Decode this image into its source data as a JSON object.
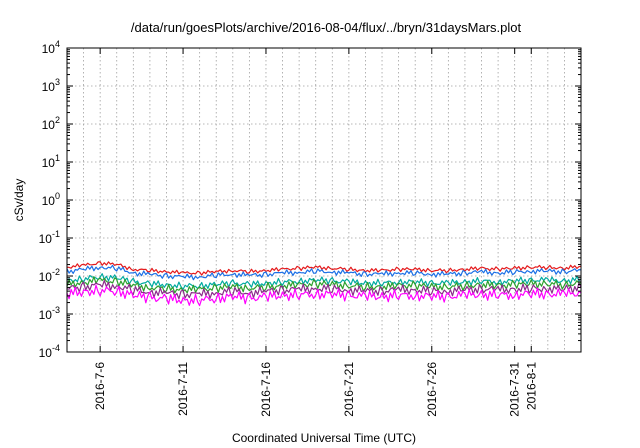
{
  "chart_data": {
    "type": "line",
    "title": "/data/run/goesPlots/archive/2016-08-04/flux/../bryn/31daysMars.plot",
    "xlabel": "Coordinated Universal Time (UTC)",
    "ylabel": "cSv/day",
    "yscale": "log",
    "ylim": [
      0.0001,
      10000
    ],
    "xlim": [
      "2016-07-04",
      "2016-08-04"
    ],
    "grid": true,
    "x_ticks": [
      {
        "label": "2016-7-6",
        "date": "2016-07-06"
      },
      {
        "label": "2016-7-11",
        "date": "2016-07-11"
      },
      {
        "label": "2016-7-16",
        "date": "2016-07-16"
      },
      {
        "label": "2016-7-21",
        "date": "2016-07-21"
      },
      {
        "label": "2016-7-26",
        "date": "2016-07-26"
      },
      {
        "label": "2016-7-31",
        "date": "2016-07-31"
      },
      {
        "label": "2016-8-1",
        "date": "2016-08-01"
      }
    ],
    "y_ticks": [
      {
        "base": "10",
        "exp": "-4",
        "value": 0.0001
      },
      {
        "base": "10",
        "exp": "-3",
        "value": 0.001
      },
      {
        "base": "10",
        "exp": "-2",
        "value": 0.01
      },
      {
        "base": "10",
        "exp": "-1",
        "value": 0.1
      },
      {
        "base": "10",
        "exp": "0",
        "value": 1
      },
      {
        "base": "10",
        "exp": "1",
        "value": 10
      },
      {
        "base": "10",
        "exp": "2",
        "value": 100
      },
      {
        "base": "10",
        "exp": "3",
        "value": 1000
      },
      {
        "base": "10",
        "exp": "4",
        "value": 10000
      }
    ],
    "x": [
      "2016-07-04",
      "2016-07-05",
      "2016-07-06",
      "2016-07-07",
      "2016-07-08",
      "2016-07-09",
      "2016-07-10",
      "2016-07-11",
      "2016-07-12",
      "2016-07-13",
      "2016-07-14",
      "2016-07-15",
      "2016-07-16",
      "2016-07-17",
      "2016-07-18",
      "2016-07-19",
      "2016-07-20",
      "2016-07-21",
      "2016-07-22",
      "2016-07-23",
      "2016-07-24",
      "2016-07-25",
      "2016-07-26",
      "2016-07-27",
      "2016-07-28",
      "2016-07-29",
      "2016-07-30",
      "2016-07-31",
      "2016-08-01",
      "2016-08-02",
      "2016-08-03",
      "2016-08-04"
    ],
    "series": [
      {
        "color": "#e41a1c",
        "values": [
          0.017,
          0.019,
          0.022,
          0.02,
          0.015,
          0.014,
          0.013,
          0.012,
          0.012,
          0.013,
          0.014,
          0.013,
          0.014,
          0.015,
          0.016,
          0.017,
          0.016,
          0.015,
          0.014,
          0.014,
          0.015,
          0.015,
          0.014,
          0.014,
          0.015,
          0.016,
          0.015,
          0.016,
          0.017,
          0.017,
          0.016,
          0.018
        ]
      },
      {
        "color": "#1a6fe6",
        "values": [
          0.013,
          0.015,
          0.017,
          0.016,
          0.012,
          0.011,
          0.01,
          0.0095,
          0.0095,
          0.0105,
          0.0112,
          0.0104,
          0.011,
          0.012,
          0.0125,
          0.0135,
          0.0128,
          0.012,
          0.0112,
          0.0112,
          0.012,
          0.012,
          0.0112,
          0.0112,
          0.012,
          0.0128,
          0.012,
          0.0128,
          0.0135,
          0.0135,
          0.0128,
          0.0145
        ]
      },
      {
        "color": "#00aaa0",
        "values": [
          0.0075,
          0.0085,
          0.0095,
          0.009,
          0.007,
          0.0063,
          0.0058,
          0.0055,
          0.0055,
          0.006,
          0.0065,
          0.006,
          0.0064,
          0.007,
          0.0073,
          0.0078,
          0.0075,
          0.007,
          0.0065,
          0.0065,
          0.007,
          0.007,
          0.0065,
          0.0065,
          0.007,
          0.0074,
          0.007,
          0.0074,
          0.0078,
          0.0078,
          0.0074,
          0.0083
        ]
      },
      {
        "color": "#2ca02c",
        "values": [
          0.006,
          0.0068,
          0.0076,
          0.0072,
          0.0056,
          0.005,
          0.0046,
          0.0044,
          0.0044,
          0.0048,
          0.0052,
          0.0048,
          0.0051,
          0.0056,
          0.0058,
          0.0062,
          0.006,
          0.0056,
          0.0052,
          0.0052,
          0.0056,
          0.0056,
          0.0052,
          0.0052,
          0.0056,
          0.0059,
          0.0056,
          0.0059,
          0.0062,
          0.0062,
          0.0059,
          0.0066
        ]
      },
      {
        "color": "#8b2a8b",
        "values": [
          0.0046,
          0.0052,
          0.0058,
          0.0055,
          0.0043,
          0.0038,
          0.0035,
          0.0033,
          0.0033,
          0.0036,
          0.004,
          0.0036,
          0.0039,
          0.0043,
          0.0044,
          0.0047,
          0.0046,
          0.0043,
          0.004,
          0.004,
          0.0043,
          0.0043,
          0.004,
          0.004,
          0.0043,
          0.0045,
          0.0043,
          0.0045,
          0.0047,
          0.0047,
          0.0045,
          0.005
        ]
      },
      {
        "color": "#ff00ff",
        "values": [
          0.0034,
          0.0038,
          0.0042,
          0.004,
          0.0031,
          0.0027,
          0.0025,
          0.0023,
          0.0023,
          0.0026,
          0.0029,
          0.0026,
          0.0028,
          0.0031,
          0.0032,
          0.0034,
          0.0033,
          0.0031,
          0.0029,
          0.0029,
          0.0031,
          0.0031,
          0.0029,
          0.0029,
          0.0031,
          0.0033,
          0.0031,
          0.0033,
          0.0034,
          0.0034,
          0.0033,
          0.0036
        ]
      }
    ]
  }
}
